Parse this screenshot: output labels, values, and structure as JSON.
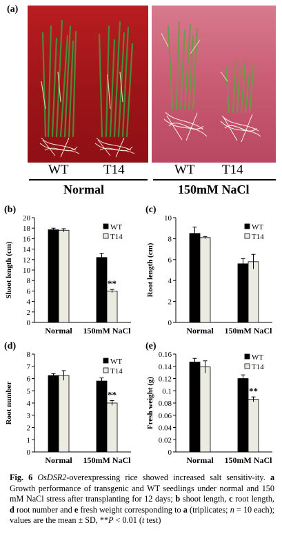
{
  "panel_a": {
    "label": "(a)",
    "genotypes_normal": [
      "WT",
      "T14"
    ],
    "genotypes_salt": [
      "WT",
      "T14"
    ],
    "condition_normal": "Normal",
    "condition_salt": "150mM NaCl"
  },
  "chart_data": [
    {
      "panel": "(b)",
      "type": "bar",
      "categories": [
        "Normal",
        "150mM NaCl"
      ],
      "ylabel": "Shoot length (cm)",
      "ylim": [
        0,
        20
      ],
      "yticks": [
        "0",
        "2",
        "4",
        "6",
        "8",
        "10",
        "12",
        "14",
        "16",
        "18",
        "20"
      ],
      "legend": [
        "WT",
        "T14"
      ],
      "series": [
        {
          "name": "WT",
          "color": "#000000",
          "values": [
            17.7,
            12.4
          ],
          "err": [
            0.3,
            0.8
          ]
        },
        {
          "name": "T14",
          "color": "#ecebe1",
          "values": [
            17.6,
            6.0
          ],
          "err": [
            0.3,
            0.3
          ]
        }
      ],
      "annotations": [
        {
          "text": "**",
          "series": "T14",
          "category": "150mM NaCl"
        }
      ]
    },
    {
      "panel": "(c)",
      "type": "bar",
      "categories": [
        "Normal",
        "150mM NaCl"
      ],
      "ylabel": "Root length (cm)",
      "ylim": [
        0,
        10
      ],
      "yticks": [
        "0",
        "2",
        "4",
        "6",
        "8",
        "10"
      ],
      "legend": [
        "WT",
        "T14"
      ],
      "series": [
        {
          "name": "WT",
          "color": "#000000",
          "values": [
            8.5,
            5.6
          ],
          "err": [
            0.6,
            0.5
          ]
        },
        {
          "name": "T14",
          "color": "#ecebe1",
          "values": [
            8.1,
            5.8
          ],
          "err": [
            0.1,
            0.7
          ]
        }
      ],
      "annotations": []
    },
    {
      "panel": "(d)",
      "type": "bar",
      "categories": [
        "Normal",
        "150mM NaCl"
      ],
      "ylabel": "Root number",
      "ylim": [
        0,
        8
      ],
      "yticks": [
        "0",
        "1",
        "2",
        "3",
        "4",
        "5",
        "6",
        "7",
        "8"
      ],
      "legend": [
        "WT",
        "T14"
      ],
      "series": [
        {
          "name": "WT",
          "color": "#000000",
          "values": [
            6.25,
            5.8
          ],
          "err": [
            0.15,
            0.25
          ]
        },
        {
          "name": "T14",
          "color": "#ecebe1",
          "values": [
            6.25,
            4.0
          ],
          "err": [
            0.4,
            0.2
          ]
        }
      ],
      "annotations": [
        {
          "text": "**",
          "series": "T14",
          "category": "150mM NaCl"
        }
      ]
    },
    {
      "panel": "(e)",
      "type": "bar",
      "categories": [
        "Normal",
        "150mM NaCl"
      ],
      "ylabel": "Fresh weight (g)",
      "ylim": [
        0,
        0.16
      ],
      "yticks": [
        "0",
        "0.02",
        "0.04",
        "0.06",
        "0.08",
        "0.1",
        "0.12",
        "0.14",
        "0.16"
      ],
      "legend": [
        "WT",
        "T14"
      ],
      "series": [
        {
          "name": "WT",
          "color": "#000000",
          "values": [
            0.147,
            0.12
          ],
          "err": [
            0.006,
            0.006
          ]
        },
        {
          "name": "T14",
          "color": "#ecebe1",
          "values": [
            0.139,
            0.086
          ],
          "err": [
            0.01,
            0.004
          ]
        }
      ],
      "annotations": [
        {
          "text": "**",
          "series": "T14",
          "category": "150mM NaCl"
        }
      ]
    }
  ],
  "caption": {
    "fig_label": "Fig. 6",
    "gene": "OsDSR2",
    "title_rest": "-overexpressing rice showed increased salt sensitiv-ity.",
    "a_key": "a",
    "a_text": "Growth performance of transgenic and WT seedlings under normal and 150 mM NaCl stress after transplanting for 12 days;",
    "b_key": "b",
    "b_text": "shoot length,",
    "c_key": "c",
    "c_text": "root length,",
    "d_key": "d",
    "d_text": "root number and",
    "e_key": "e",
    "e_text": "fresh weight corresponding to",
    "a2_key": "a",
    "tail_1": "(triplicates;",
    "n_text": "n",
    "tail_2": "= 10 each); values are the mean ± SD, **",
    "p_text": "P",
    "tail_3": "< 0.01 (",
    "t_text": "t",
    "tail_4": "test)"
  }
}
